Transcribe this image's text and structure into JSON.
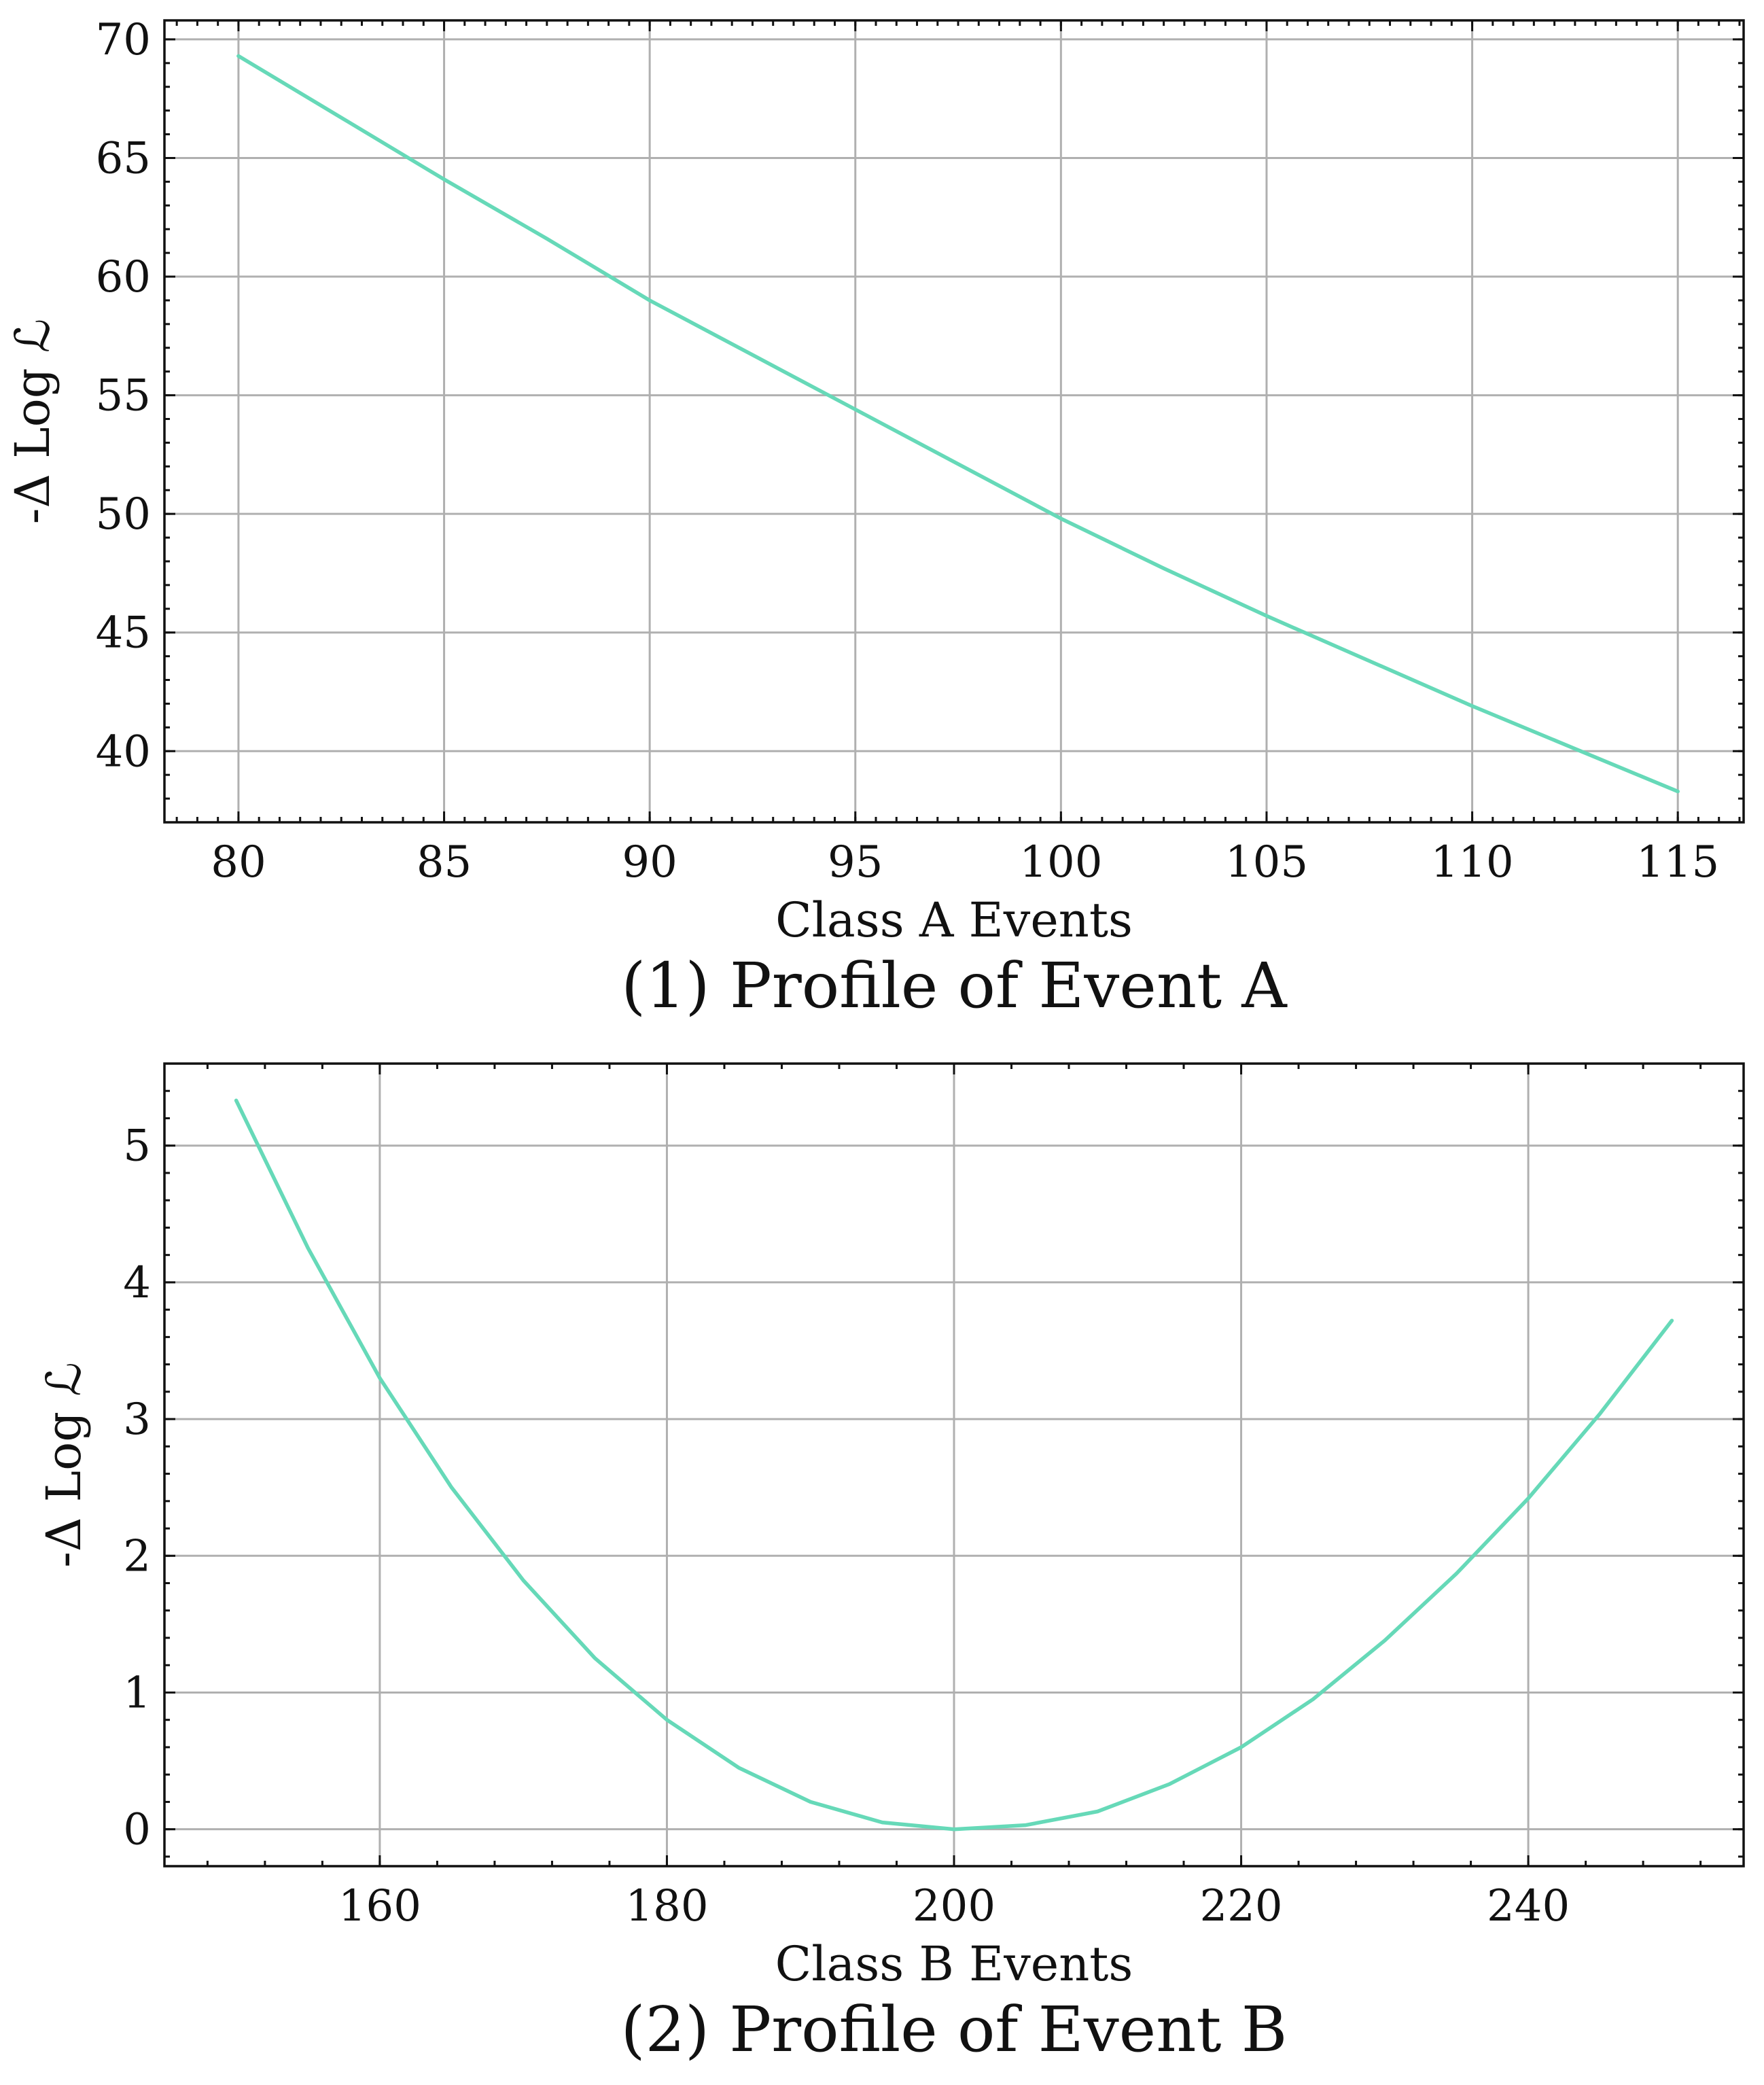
{
  "chart_data": [
    {
      "type": "line",
      "caption": "(1) Profile of Event A",
      "xlabel": "Class A Events",
      "ylabel": "-Δ Log ℒ",
      "xlim": [
        78.2,
        116.6
      ],
      "ylim": [
        37.0,
        70.8
      ],
      "xticks": [
        80,
        85,
        90,
        95,
        100,
        105,
        110,
        115
      ],
      "yticks": [
        40,
        45,
        50,
        55,
        60,
        65,
        70
      ],
      "grid": true,
      "line_color": "#66d9b8",
      "series": [
        {
          "x": [
            80,
            82.5,
            85,
            87.5,
            90,
            92.5,
            95,
            97.5,
            100,
            102.5,
            105,
            107.5,
            110,
            112.5,
            115
          ],
          "y": [
            69.3,
            66.7,
            64.1,
            61.6,
            59.0,
            56.7,
            54.4,
            52.1,
            49.8,
            47.7,
            45.7,
            43.8,
            41.9,
            40.1,
            38.3
          ]
        }
      ]
    },
    {
      "type": "line",
      "caption": "(2) Profile of Event B",
      "xlabel": "Class B Events",
      "ylabel": "-Δ Log ℒ",
      "xlim": [
        145,
        255
      ],
      "ylim": [
        -0.27,
        5.6
      ],
      "xticks": [
        160,
        180,
        200,
        220,
        240
      ],
      "yticks": [
        0,
        1,
        2,
        3,
        4,
        5
      ],
      "grid": true,
      "line_color": "#66d9b8",
      "series": [
        {
          "x": [
            150,
            155,
            160,
            165,
            170,
            175,
            180,
            185,
            190,
            195,
            200,
            205,
            210,
            215,
            220,
            225,
            230,
            235,
            240,
            245,
            250
          ],
          "y": [
            5.33,
            4.25,
            3.3,
            2.5,
            1.82,
            1.25,
            0.8,
            0.45,
            0.2,
            0.05,
            0.0,
            0.03,
            0.13,
            0.33,
            0.6,
            0.95,
            1.38,
            1.87,
            2.42,
            3.04,
            3.72
          ]
        }
      ]
    }
  ]
}
